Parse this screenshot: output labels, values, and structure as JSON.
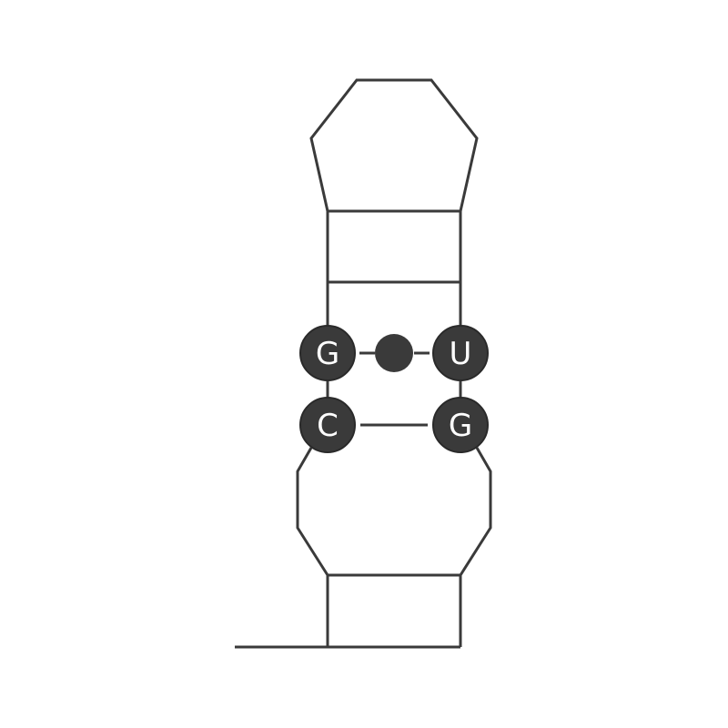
{
  "bases": [
    {
      "id": "g-left",
      "letter": "G"
    },
    {
      "id": "u-right",
      "letter": "U"
    },
    {
      "id": "c-left",
      "letter": "C"
    },
    {
      "id": "g-right",
      "letter": "G"
    }
  ],
  "pairs": [
    {
      "left": "G",
      "right": "U",
      "style": "wobble-dot"
    },
    {
      "left": "C",
      "right": "G",
      "style": "line"
    }
  ],
  "colors": {
    "stroke": "#3a3a3a",
    "base_fill": "#3a3a3a",
    "base_text": "#ffffff",
    "background": "#ffffff"
  }
}
